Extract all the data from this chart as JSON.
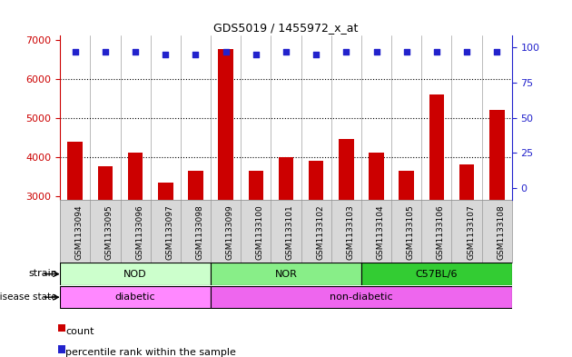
{
  "title": "GDS5019 / 1455972_x_at",
  "samples": [
    "GSM1133094",
    "GSM1133095",
    "GSM1133096",
    "GSM1133097",
    "GSM1133098",
    "GSM1133099",
    "GSM1133100",
    "GSM1133101",
    "GSM1133102",
    "GSM1133103",
    "GSM1133104",
    "GSM1133105",
    "GSM1133106",
    "GSM1133107",
    "GSM1133108"
  ],
  "counts": [
    4400,
    3750,
    4100,
    3350,
    3650,
    6750,
    3650,
    4000,
    3900,
    4450,
    4100,
    3650,
    5600,
    3800,
    5200
  ],
  "percentiles": [
    97,
    97,
    97,
    95,
    95,
    97,
    95,
    97,
    95,
    97,
    97,
    97,
    97,
    97,
    97
  ],
  "bar_color": "#cc0000",
  "dot_color": "#2222cc",
  "ylim_left": [
    2900,
    7100
  ],
  "bar_bottom": 2900,
  "ylim_right": [
    -8.35,
    108.35
  ],
  "yticks_left": [
    3000,
    4000,
    5000,
    6000,
    7000
  ],
  "yticks_right": [
    0,
    25,
    50,
    75,
    100
  ],
  "left_axis_color": "#cc0000",
  "right_axis_color": "#2222cc",
  "dotted_yticks": [
    4000,
    5000,
    6000
  ],
  "strain_colors": {
    "NOD": "#ccffcc",
    "NOR": "#88ee88",
    "C57BL/6": "#33cc33"
  },
  "strain_groups": [
    {
      "name": "NOD",
      "start": 0,
      "end": 4
    },
    {
      "name": "NOR",
      "start": 5,
      "end": 9
    },
    {
      "name": "C57BL/6",
      "start": 10,
      "end": 14
    }
  ],
  "disease_colors": {
    "diabetic": "#ff88ff",
    "non-diabetic": "#ee66ee"
  },
  "disease_groups": [
    {
      "name": "diabetic",
      "start": 0,
      "end": 4
    },
    {
      "name": "non-diabetic",
      "start": 5,
      "end": 14
    }
  ],
  "plot_bg": "#ffffff",
  "label_bg": "#d8d8d8",
  "grid_color": "#000000",
  "vline_color": "#888888",
  "spine_color": "#888888"
}
